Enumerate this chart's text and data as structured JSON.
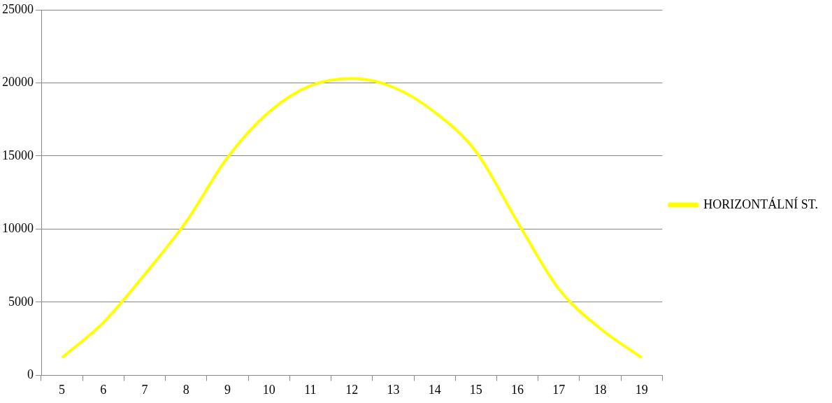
{
  "chart_data": {
    "type": "line",
    "categories": [
      "5",
      "6",
      "7",
      "8",
      "9",
      "10",
      "11",
      "12",
      "13",
      "14",
      "15",
      "16",
      "17",
      "18",
      "19"
    ],
    "series": [
      {
        "name": "HORIZONTÁLNÍ ST.",
        "color": "#ffff00",
        "values": [
          1200,
          3600,
          6900,
          10500,
          14900,
          18000,
          19800,
          20300,
          19700,
          18000,
          15300,
          10500,
          5900,
          3200,
          1200
        ]
      }
    ],
    "ylim": [
      0,
      25000
    ],
    "yticks": [
      0,
      5000,
      10000,
      15000,
      20000,
      25000
    ],
    "grid": "y",
    "legend": "right",
    "marker": "none",
    "line_style": "solid"
  }
}
